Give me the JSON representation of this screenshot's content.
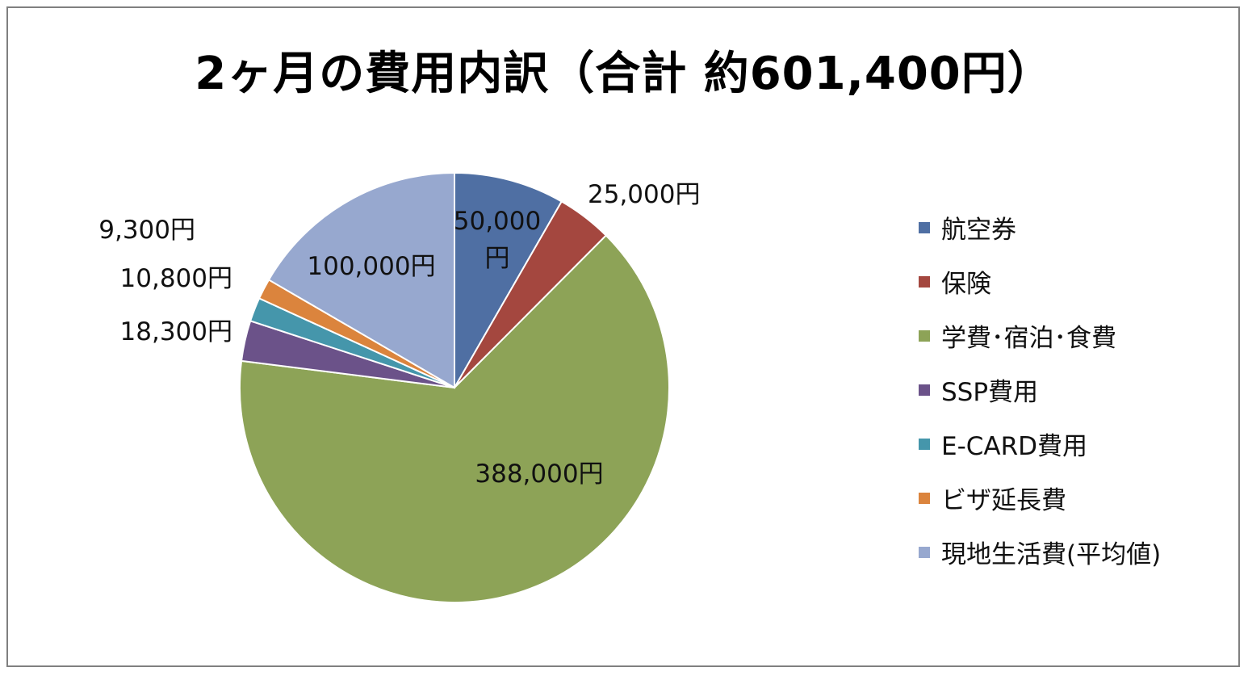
{
  "chart_data": {
    "type": "pie",
    "title": "2ヶ月の費用内訳（合計 約601,400円）",
    "categories": [
      "航空券",
      "保険",
      "学費・宿泊・食費",
      "SSP費用",
      "E-CARD費用",
      "ビザ延長費",
      "現地生活費（平均値）"
    ],
    "values": [
      50000,
      25000,
      388000,
      18300,
      10800,
      9300,
      100000
    ],
    "data_labels": [
      "50,000円",
      "25,000円",
      "388,000円",
      "18,300円",
      "10,800円",
      "9,300円",
      "100,000円"
    ],
    "colors": [
      "#4F6FA3",
      "#A4473F",
      "#8DA357",
      "#6B5289",
      "#4596AB",
      "#DB843D",
      "#97A8CF"
    ],
    "legend_position": "right"
  },
  "legend_labels": [
    "航空券",
    "保険",
    "学費･宿泊･食費",
    "SSP費用",
    "E-CARD費用",
    "ビザ延長費",
    "現地生活費(平均値)"
  ]
}
